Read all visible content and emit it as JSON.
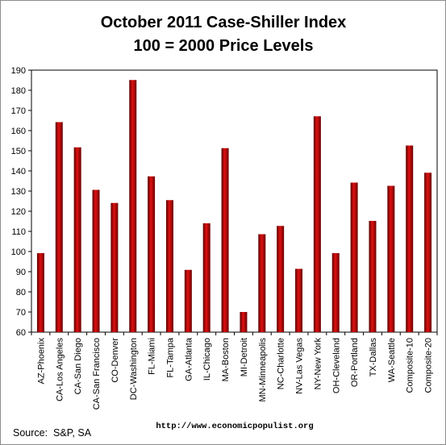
{
  "chart_data": {
    "type": "bar",
    "title": "October 2011 Case-Shiller Index",
    "subtitle": "100 = 2000 Price Levels",
    "xlabel": "",
    "ylabel": "",
    "ylim": [
      60,
      190
    ],
    "yticks": [
      60,
      70,
      80,
      90,
      100,
      110,
      120,
      130,
      140,
      150,
      160,
      170,
      180,
      190
    ],
    "grid": false,
    "legend": "none",
    "bar_color": "#c00000",
    "categories": [
      "AZ-Phoenix",
      "CA-Los Angeles",
      "CA-San Diego",
      "CA-San Francisco",
      "CO-Denver",
      "DC-Washington",
      "FL-Miami",
      "FL-Tampa",
      "GA-Atlanta",
      "IL-Chicago",
      "MA-Boston",
      "MI-Detroit",
      "MN-Minneapolis",
      "NC-Charlotte",
      "NV-Las Vegas",
      "NY-New York",
      "OH-Cleveland",
      "OR-Portland",
      "TX-Dallas",
      "WA-Seattle",
      "Composite-10",
      "Composite-20"
    ],
    "values": [
      99.2,
      164.2,
      151.7,
      130.6,
      124.1,
      185.1,
      137.3,
      125.5,
      90.9,
      114.0,
      151.3,
      70.0,
      108.6,
      112.7,
      91.4,
      167.1,
      99.2,
      134.2,
      115.2,
      132.6,
      152.6,
      139.1
    ]
  },
  "footer": {
    "url": "http://www.economicpopulist.org",
    "source": "Source:  S&P, SA"
  }
}
